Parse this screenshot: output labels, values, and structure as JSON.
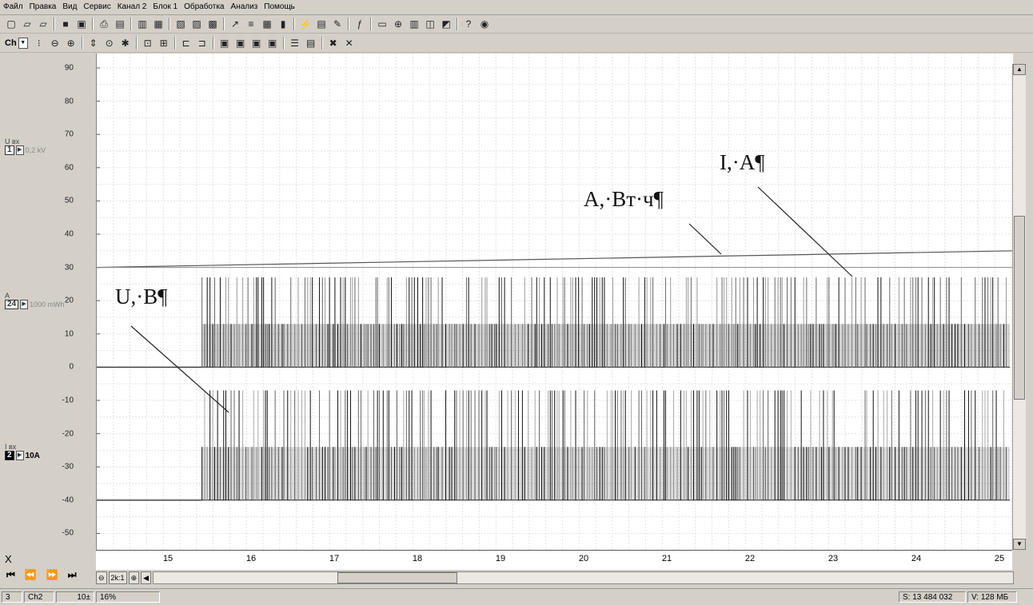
{
  "menu": [
    "Файл",
    "Правка",
    "Вид",
    "Сервис",
    "Канал 2",
    "Блок 1",
    "Обработка",
    "Анализ",
    "Помощь"
  ],
  "toolbar2": {
    "ch_label": "Ch"
  },
  "y_ticks": [
    "90",
    "80",
    "70",
    "60",
    "50",
    "40",
    "30",
    "20",
    "10",
    "0",
    "-10",
    "-20",
    "-30",
    "-40",
    "-50"
  ],
  "channels": {
    "u": {
      "name": "U вх",
      "num": "1",
      "scale": "0,2 kV"
    },
    "a": {
      "name": "A",
      "num": "24",
      "scale": "1000 mWh"
    },
    "i": {
      "name": "I вх",
      "num": "2",
      "scale": "10A"
    }
  },
  "x_ticks": [
    "15",
    "16",
    "17",
    "18",
    "19",
    "20",
    "21",
    "22",
    "23",
    "24",
    "25"
  ],
  "x_header": "X",
  "scroll_ctrl": {
    "minus": "⊖",
    "zoom": "2k:1",
    "plus": "⊕"
  },
  "annotations": {
    "current": "I,·A¶",
    "energy": "A,·Вт·ч¶",
    "voltage": "U,·В¶"
  },
  "status": {
    "block": "3",
    "channel": "Ch2",
    "step": "10±",
    "percent": "16%",
    "samples": "S: 13 484 032",
    "memory": "V: 128 МБ"
  },
  "chart_data": {
    "type": "line",
    "x_range": [
      14.5,
      25.2
    ],
    "ylim": [
      -57,
      90
    ],
    "series": [
      {
        "name": "A, Вт·ч",
        "x": [
          14.5,
          25.2
        ],
        "y": [
          30,
          35
        ]
      },
      {
        "name": "I, A",
        "x": [
          14.5,
          15.4,
          15.4,
          25.2
        ],
        "y": [
          0,
          0,
          27,
          27
        ],
        "pulse_low": 13
      },
      {
        "name": "U, B",
        "x": [
          14.5,
          15.4,
          15.4,
          25.2
        ],
        "y": [
          -40,
          -40,
          -7,
          -7
        ],
        "pulse_mid": -24
      }
    ]
  }
}
